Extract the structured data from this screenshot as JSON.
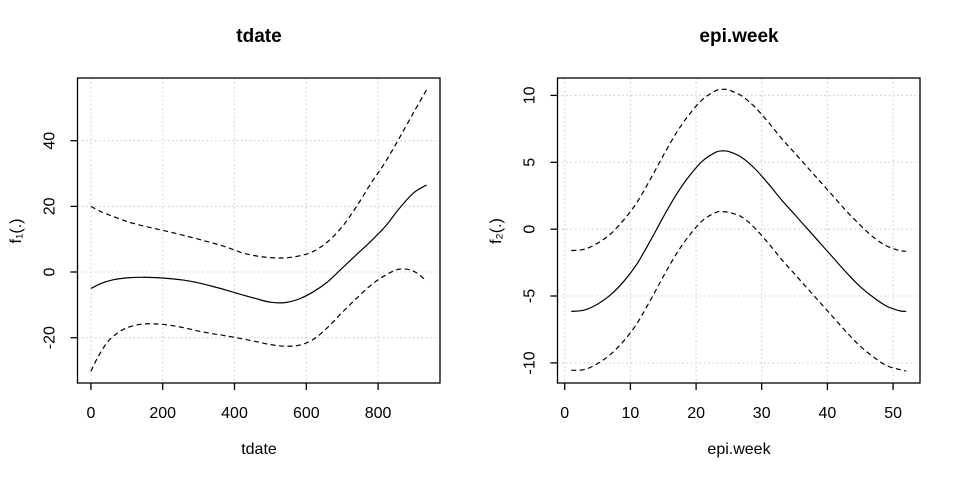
{
  "figure": {
    "background": "#ffffff",
    "description_colors": {
      "curve": "#000000",
      "box": "#000000",
      "grid": "#d3d3d3",
      "text": "#000000"
    }
  },
  "chart_data": [
    {
      "type": "line",
      "title": "tdate",
      "xlabel": "tdate",
      "ylabel": "f₁(.)",
      "xlim": [
        -37.4,
        972.4
      ],
      "ylim": [
        -33.8,
        59.1
      ],
      "xticks": [
        0,
        200,
        400,
        600,
        800
      ],
      "yticks": [
        -20,
        0,
        20,
        40
      ],
      "grid": true,
      "legend": "none",
      "colors": {
        "line": "#000000",
        "grid": "#d3d3d3",
        "box": "#000000"
      },
      "series": [
        {
          "name": "fit",
          "style": "solid",
          "x": [
            0,
            30,
            60,
            100,
            140,
            180,
            220,
            260,
            300,
            340,
            380,
            420,
            460,
            500,
            540,
            580,
            620,
            660,
            700,
            740,
            780,
            820,
            860,
            900,
            935
          ],
          "y": [
            -5.0,
            -3.4,
            -2.4,
            -1.8,
            -1.6,
            -1.7,
            -2.0,
            -2.5,
            -3.3,
            -4.4,
            -5.6,
            -6.9,
            -8.1,
            -9.2,
            -9.3,
            -8.2,
            -6.0,
            -2.9,
            1.2,
            5.3,
            9.4,
            13.9,
            19.5,
            24.2,
            26.5
          ]
        },
        {
          "name": "upper-ci",
          "style": "dashed",
          "x": [
            0,
            30,
            60,
            100,
            140,
            180,
            220,
            260,
            300,
            340,
            380,
            420,
            460,
            500,
            540,
            580,
            620,
            660,
            700,
            740,
            780,
            820,
            860,
            900,
            935
          ],
          "y": [
            20.0,
            18.3,
            17.0,
            15.4,
            14.2,
            13.2,
            12.2,
            11.1,
            10.0,
            8.8,
            7.5,
            5.9,
            4.9,
            4.4,
            4.3,
            4.9,
            6.3,
            9.3,
            13.8,
            20.0,
            27.0,
            33.5,
            41.0,
            48.8,
            55.5
          ]
        },
        {
          "name": "lower-ci",
          "style": "dashed",
          "x": [
            0,
            20,
            45,
            70,
            100,
            140,
            180,
            220,
            260,
            300,
            340,
            380,
            420,
            460,
            500,
            540,
            580,
            620,
            660,
            700,
            740,
            780,
            820,
            860,
            900,
            935
          ],
          "y": [
            -30.2,
            -25.8,
            -21.5,
            -18.9,
            -17.0,
            -15.9,
            -15.8,
            -16.2,
            -17.0,
            -18.0,
            -18.8,
            -19.5,
            -20.3,
            -21.2,
            -22.1,
            -22.6,
            -22.3,
            -20.5,
            -16.8,
            -12.3,
            -8.0,
            -4.0,
            -1.0,
            0.9,
            0.2,
            -2.8
          ]
        }
      ]
    },
    {
      "type": "line",
      "title": "epi.week",
      "xlabel": "epi.week",
      "ylabel": "f₂(.)",
      "xlim": [
        -1.1,
        54.1
      ],
      "ylim": [
        -11.5,
        11.3
      ],
      "xticks": [
        0,
        10,
        20,
        30,
        40,
        50
      ],
      "yticks": [
        -10,
        -5,
        0,
        5,
        10
      ],
      "grid": true,
      "legend": "none",
      "colors": {
        "line": "#000000",
        "grid": "#d3d3d3",
        "box": "#000000"
      },
      "series": [
        {
          "name": "fit",
          "style": "solid",
          "x": [
            1,
            3,
            5,
            7,
            9,
            11,
            13,
            15,
            17,
            19,
            21,
            23,
            24,
            25,
            27,
            29,
            31,
            33,
            35,
            37,
            39,
            41,
            43,
            45,
            47,
            49,
            51,
            52
          ],
          "y": [
            -6.15,
            -6.05,
            -5.6,
            -4.9,
            -3.9,
            -2.6,
            -0.9,
            0.9,
            2.6,
            4.0,
            5.1,
            5.75,
            5.85,
            5.8,
            5.35,
            4.5,
            3.4,
            2.2,
            1.1,
            0.0,
            -1.1,
            -2.2,
            -3.3,
            -4.3,
            -5.1,
            -5.75,
            -6.1,
            -6.15
          ]
        },
        {
          "name": "upper-ci",
          "style": "dashed",
          "x": [
            1,
            3,
            5,
            7,
            9,
            11,
            13,
            15,
            17,
            19,
            21,
            23,
            24,
            25,
            27,
            29,
            31,
            33,
            35,
            37,
            39,
            41,
            43,
            45,
            47,
            49,
            51,
            52
          ],
          "y": [
            -1.6,
            -1.5,
            -1.05,
            -0.35,
            0.7,
            2.0,
            3.7,
            5.5,
            7.2,
            8.6,
            9.7,
            10.35,
            10.45,
            10.4,
            9.95,
            9.1,
            8.0,
            6.8,
            5.7,
            4.6,
            3.5,
            2.4,
            1.3,
            0.3,
            -0.6,
            -1.25,
            -1.6,
            -1.65
          ]
        },
        {
          "name": "lower-ci",
          "style": "dashed",
          "x": [
            1,
            3,
            5,
            7,
            9,
            11,
            13,
            15,
            17,
            19,
            21,
            23,
            24,
            25,
            27,
            29,
            31,
            33,
            35,
            37,
            39,
            41,
            43,
            45,
            47,
            49,
            51,
            52
          ],
          "y": [
            -10.55,
            -10.5,
            -10.05,
            -9.35,
            -8.35,
            -7.05,
            -5.35,
            -3.55,
            -1.85,
            -0.45,
            0.65,
            1.25,
            1.3,
            1.25,
            0.9,
            0.05,
            -1.05,
            -2.25,
            -3.35,
            -4.45,
            -5.55,
            -6.65,
            -7.75,
            -8.75,
            -9.55,
            -10.2,
            -10.5,
            -10.6
          ]
        }
      ]
    }
  ]
}
